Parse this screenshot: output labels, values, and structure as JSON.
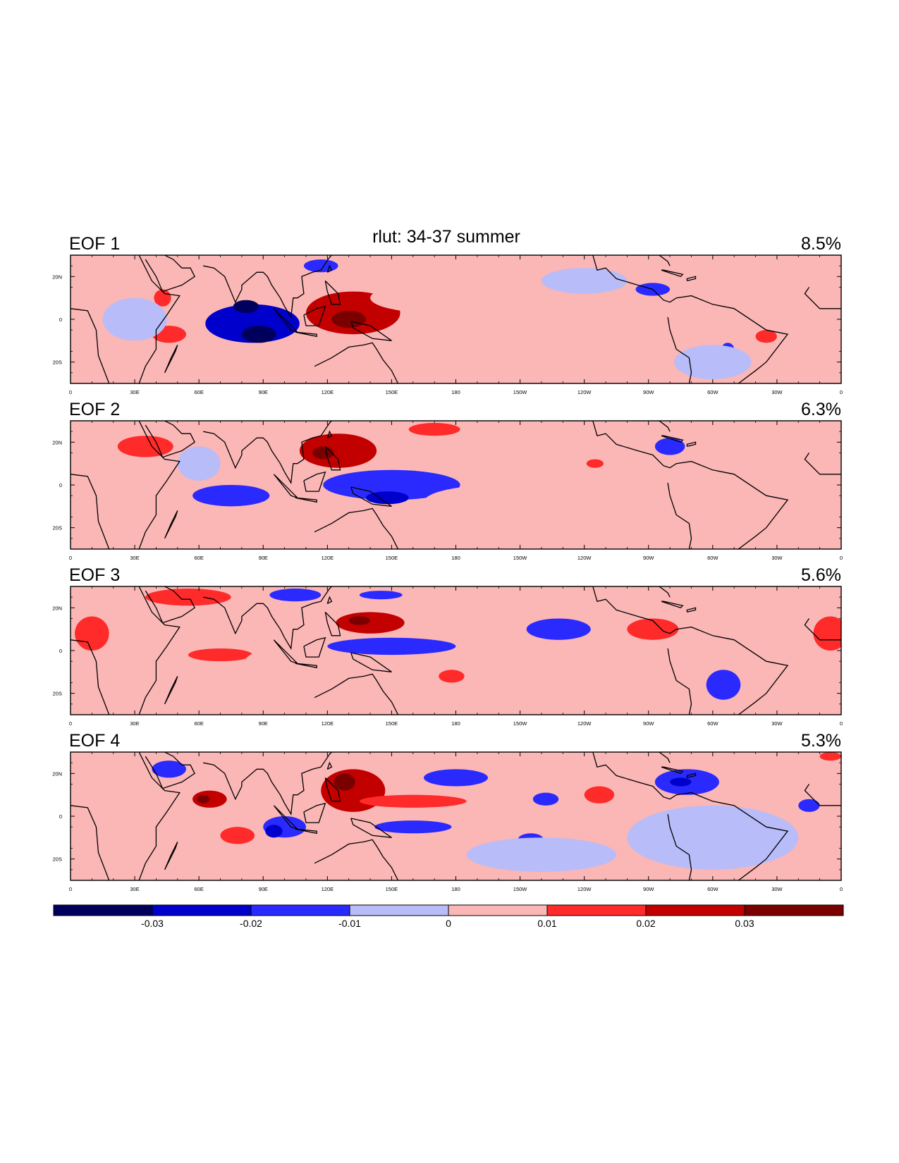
{
  "chart_data": {
    "type": "heatmap",
    "title": "rlut: 34-37 summer",
    "colormap": [
      "#00005c",
      "#0000cc",
      "#2a2aff",
      "#b8bcf8",
      "#fbb6b6",
      "#ff2a2a",
      "#c20000",
      "#7a0000"
    ],
    "levels": [
      -0.03,
      -0.02,
      -0.01,
      0,
      0.01,
      0.02,
      0.03
    ],
    "colorbar_labels": [
      "-0.03",
      "-0.02",
      "-0.01",
      "0",
      "0.01",
      "0.02",
      "0.03"
    ],
    "lon_range": [
      0,
      360
    ],
    "lat_range": [
      -30,
      30
    ],
    "lon_tick_labels": [
      "0",
      "30E",
      "60E",
      "90E",
      "120E",
      "150E",
      "180",
      "150W",
      "120W",
      "90W",
      "60W",
      "30W",
      "0"
    ],
    "lat_tick_labels": [
      "20N",
      "0",
      "20S"
    ],
    "panels": [
      {
        "label": "EOF 1",
        "variance": "8.5%",
        "features": [
          {
            "lon": 85,
            "lat": -2,
            "rlon": 22,
            "rlat": 9,
            "value": -0.025
          },
          {
            "lon": 88,
            "lat": -7,
            "rlon": 8,
            "rlat": 4,
            "value": -0.035
          },
          {
            "lon": 82,
            "lat": 6,
            "rlon": 6,
            "rlat": 3,
            "value": -0.032
          },
          {
            "lon": 132,
            "lat": 3,
            "rlon": 22,
            "rlat": 10,
            "value": 0.022
          },
          {
            "lon": 130,
            "lat": 0,
            "rlon": 8,
            "rlat": 4,
            "value": 0.033
          },
          {
            "lon": 117,
            "lat": 25,
            "rlon": 8,
            "rlat": 3,
            "value": -0.015
          },
          {
            "lon": 170,
            "lat": 10,
            "rlon": 30,
            "rlat": 7,
            "value": 0.006
          },
          {
            "lon": 43,
            "lat": 10,
            "rlon": 4,
            "rlat": 4,
            "value": 0.015
          },
          {
            "lon": 46,
            "lat": -7,
            "rlon": 8,
            "rlat": 4,
            "value": 0.015
          },
          {
            "lon": 272,
            "lat": 14,
            "rlon": 8,
            "rlat": 3,
            "value": -0.015
          },
          {
            "lon": 307,
            "lat": -14,
            "rlon": 3,
            "rlat": 3,
            "value": -0.015
          },
          {
            "lon": 325,
            "lat": -8,
            "rlon": 5,
            "rlat": 3,
            "value": 0.015
          },
          {
            "lon": 240,
            "lat": 18,
            "rlon": 20,
            "rlat": 6,
            "value": -0.006
          },
          {
            "lon": 300,
            "lat": -20,
            "rlon": 18,
            "rlat": 8,
            "value": -0.006
          },
          {
            "lon": 30,
            "lat": 0,
            "rlon": 15,
            "rlat": 10,
            "value": -0.005
          }
        ]
      },
      {
        "label": "EOF 2",
        "variance": "6.3%",
        "features": [
          {
            "lon": 125,
            "lat": 16,
            "rlon": 18,
            "rlat": 8,
            "value": 0.022
          },
          {
            "lon": 118,
            "lat": 15,
            "rlon": 5,
            "rlat": 3,
            "value": 0.03
          },
          {
            "lon": 150,
            "lat": 0,
            "rlon": 32,
            "rlat": 7,
            "value": -0.02
          },
          {
            "lon": 148,
            "lat": -6,
            "rlon": 10,
            "rlat": 3,
            "value": -0.03
          },
          {
            "lon": 75,
            "lat": -5,
            "rlon": 18,
            "rlat": 5,
            "value": -0.02
          },
          {
            "lon": 35,
            "lat": 18,
            "rlon": 13,
            "rlat": 5,
            "value": 0.015
          },
          {
            "lon": 170,
            "lat": 26,
            "rlon": 12,
            "rlat": 3,
            "value": 0.015
          },
          {
            "lon": 280,
            "lat": 18,
            "rlon": 7,
            "rlat": 4,
            "value": -0.015
          },
          {
            "lon": 245,
            "lat": 10,
            "rlon": 4,
            "rlat": 2,
            "value": 0.015
          },
          {
            "lon": 200,
            "lat": -8,
            "rlon": 35,
            "rlat": 8,
            "value": 0.006
          },
          {
            "lon": 305,
            "lat": -5,
            "rlon": 25,
            "rlat": 12,
            "value": 0.006
          },
          {
            "lon": 60,
            "lat": 10,
            "rlon": 10,
            "rlat": 8,
            "value": -0.005
          }
        ]
      },
      {
        "label": "EOF 3",
        "variance": "5.6%",
        "features": [
          {
            "lon": 140,
            "lat": 13,
            "rlon": 16,
            "rlat": 5,
            "value": 0.022
          },
          {
            "lon": 135,
            "lat": 14,
            "rlon": 5,
            "rlat": 2,
            "value": 0.03
          },
          {
            "lon": 150,
            "lat": 2,
            "rlon": 30,
            "rlat": 4,
            "value": -0.015
          },
          {
            "lon": 228,
            "lat": 10,
            "rlon": 15,
            "rlat": 5,
            "value": -0.015
          },
          {
            "lon": 305,
            "lat": -16,
            "rlon": 8,
            "rlat": 7,
            "value": -0.015
          },
          {
            "lon": 272,
            "lat": 10,
            "rlon": 12,
            "rlat": 5,
            "value": 0.015
          },
          {
            "lon": 55,
            "lat": 25,
            "rlon": 20,
            "rlat": 4,
            "value": 0.015
          },
          {
            "lon": 70,
            "lat": -2,
            "rlon": 15,
            "rlat": 3,
            "value": 0.015
          },
          {
            "lon": 178,
            "lat": -12,
            "rlon": 6,
            "rlat": 3,
            "value": 0.015
          },
          {
            "lon": 105,
            "lat": 26,
            "rlon": 12,
            "rlat": 3,
            "value": -0.015
          },
          {
            "lon": 145,
            "lat": 26,
            "rlon": 10,
            "rlat": 2,
            "value": -0.015
          },
          {
            "lon": 10,
            "lat": 8,
            "rlon": 8,
            "rlat": 8,
            "value": 0.015
          },
          {
            "lon": 355,
            "lat": 8,
            "rlon": 8,
            "rlat": 8,
            "value": 0.015
          },
          {
            "lon": 210,
            "lat": -14,
            "rlon": 25,
            "rlat": 8,
            "value": 0.006
          },
          {
            "lon": 100,
            "lat": -8,
            "rlon": 20,
            "rlat": 10,
            "value": 0.006
          }
        ]
      },
      {
        "label": "EOF 4",
        "variance": "5.3%",
        "features": [
          {
            "lon": 132,
            "lat": 12,
            "rlon": 15,
            "rlat": 10,
            "value": 0.022
          },
          {
            "lon": 128,
            "lat": 16,
            "rlon": 5,
            "rlat": 4,
            "value": 0.03
          },
          {
            "lon": 160,
            "lat": 7,
            "rlon": 25,
            "rlat": 3,
            "value": 0.018
          },
          {
            "lon": 65,
            "lat": 8,
            "rlon": 8,
            "rlat": 4,
            "value": 0.025
          },
          {
            "lon": 62,
            "lat": 8,
            "rlon": 3,
            "rlat": 2,
            "value": 0.034
          },
          {
            "lon": 78,
            "lat": -9,
            "rlon": 8,
            "rlat": 4,
            "value": 0.015
          },
          {
            "lon": 100,
            "lat": -5,
            "rlon": 10,
            "rlat": 5,
            "value": -0.015
          },
          {
            "lon": 95,
            "lat": -7,
            "rlon": 4,
            "rlat": 3,
            "value": -0.025
          },
          {
            "lon": 160,
            "lat": -5,
            "rlon": 18,
            "rlat": 3,
            "value": -0.015
          },
          {
            "lon": 180,
            "lat": 18,
            "rlon": 15,
            "rlat": 4,
            "value": -0.015
          },
          {
            "lon": 288,
            "lat": 16,
            "rlon": 15,
            "rlat": 6,
            "value": -0.016
          },
          {
            "lon": 285,
            "lat": 16,
            "rlon": 5,
            "rlat": 2,
            "value": -0.025
          },
          {
            "lon": 247,
            "lat": 10,
            "rlon": 7,
            "rlat": 4,
            "value": 0.015
          },
          {
            "lon": 222,
            "lat": 8,
            "rlon": 6,
            "rlat": 3,
            "value": -0.015
          },
          {
            "lon": 215,
            "lat": -11,
            "rlon": 6,
            "rlat": 3,
            "value": -0.015
          },
          {
            "lon": 46,
            "lat": 22,
            "rlon": 8,
            "rlat": 4,
            "value": -0.015
          },
          {
            "lon": 345,
            "lat": 5,
            "rlon": 5,
            "rlat": 3,
            "value": -0.015
          },
          {
            "lon": 355,
            "lat": 28,
            "rlon": 5,
            "rlat": 2,
            "value": 0.015
          },
          {
            "lon": 300,
            "lat": -10,
            "rlon": 40,
            "rlat": 15,
            "value": -0.006
          },
          {
            "lon": 220,
            "lat": -18,
            "rlon": 35,
            "rlat": 8,
            "value": -0.006
          },
          {
            "lon": 30,
            "lat": -15,
            "rlon": 12,
            "rlat": 10,
            "value": 0.006
          }
        ]
      }
    ]
  }
}
